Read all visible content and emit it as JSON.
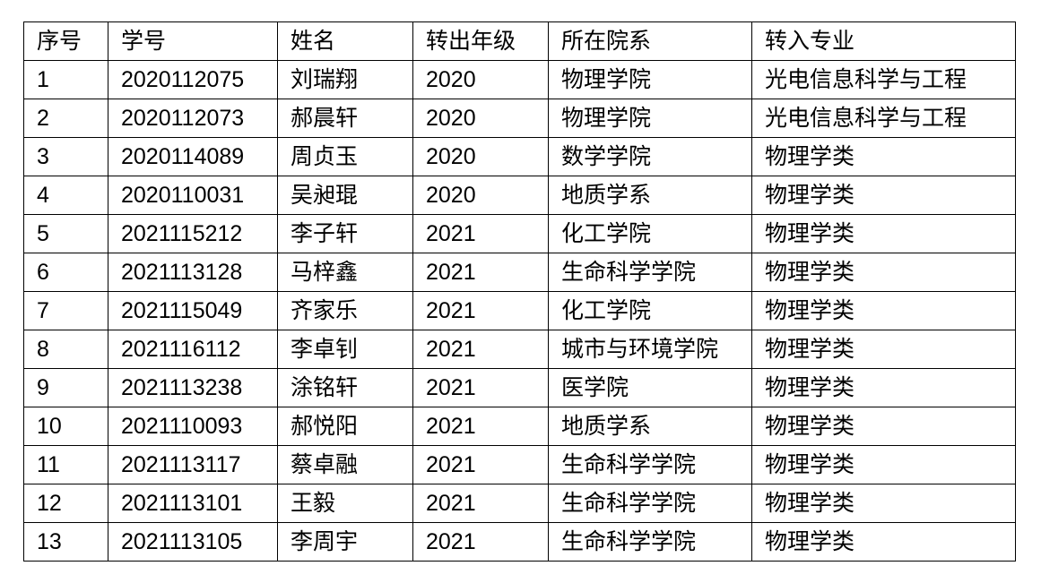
{
  "table": {
    "headers": [
      "序号",
      "学号",
      "姓名",
      "转出年级",
      "所在院系",
      "转入专业"
    ],
    "rows": [
      [
        "1",
        "2020112075",
        "刘瑞翔",
        "2020",
        "物理学院",
        "光电信息科学与工程"
      ],
      [
        "2",
        "2020112073",
        "郝晨轩",
        "2020",
        "物理学院",
        "光电信息科学与工程"
      ],
      [
        "3",
        "2020114089",
        "周贞玉",
        "2020",
        "数学学院",
        "物理学类"
      ],
      [
        "4",
        "2020110031",
        "吴昶琨",
        "2020",
        "地质学系",
        "物理学类"
      ],
      [
        "5",
        "2021115212",
        "李子轩",
        "2021",
        "化工学院",
        "物理学类"
      ],
      [
        "6",
        "2021113128",
        "马梓鑫",
        "2021",
        "生命科学学院",
        "物理学类"
      ],
      [
        "7",
        "2021115049",
        "齐家乐",
        "2021",
        "化工学院",
        "物理学类"
      ],
      [
        "8",
        "2021116112",
        "李卓钊",
        "2021",
        "城市与环境学院",
        "物理学类"
      ],
      [
        "9",
        "2021113238",
        "涂铭轩",
        "2021",
        "医学院",
        "物理学类"
      ],
      [
        "10",
        "2021110093",
        "郝悦阳",
        "2021",
        "地质学系",
        "物理学类"
      ],
      [
        "11",
        "2021113117",
        "蔡卓融",
        "2021",
        "生命科学学院",
        "物理学类"
      ],
      [
        "12",
        "2021113101",
        "王毅",
        "2021",
        "生命科学学院",
        "物理学类"
      ],
      [
        "13",
        "2021113105",
        "李周宇",
        "2021",
        "生命科学学院",
        "物理学类"
      ]
    ]
  }
}
